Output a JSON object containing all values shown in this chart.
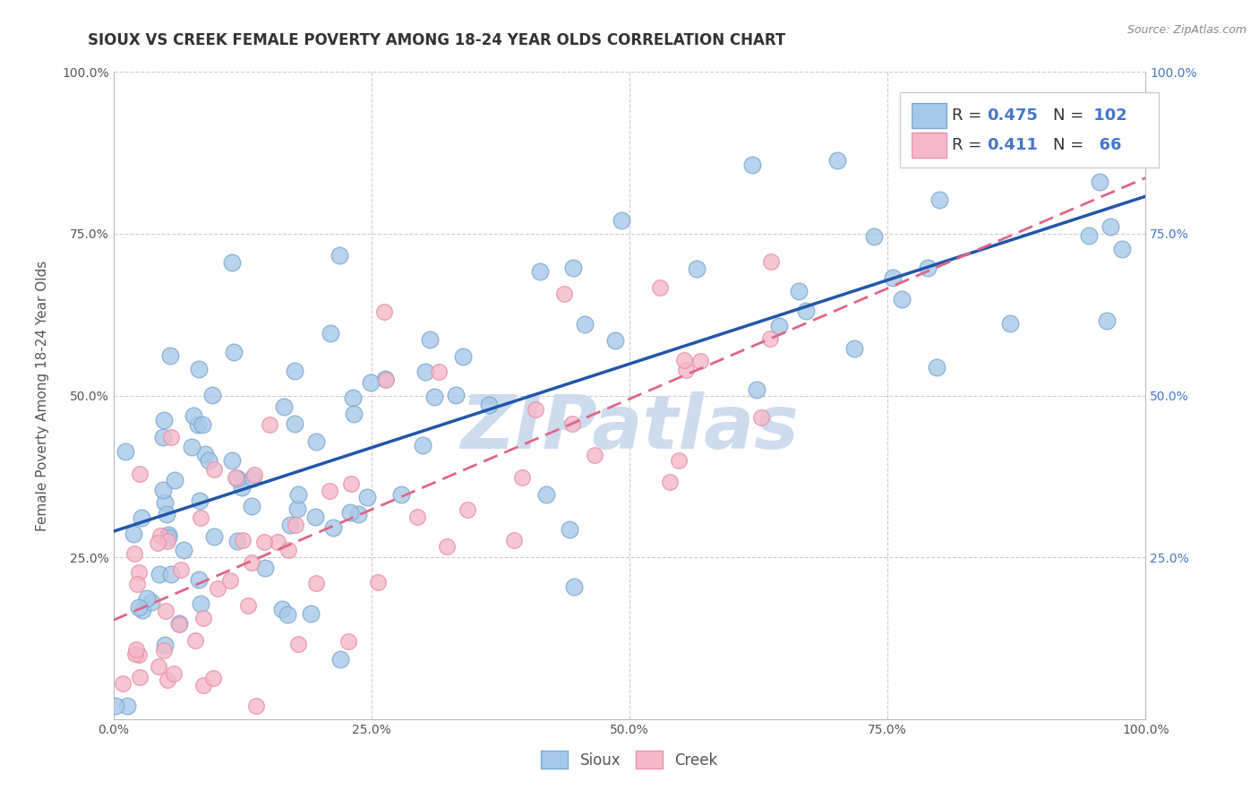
{
  "title": "SIOUX VS CREEK FEMALE POVERTY AMONG 18-24 YEAR OLDS CORRELATION CHART",
  "source": "Source: ZipAtlas.com",
  "ylabel": "Female Poverty Among 18-24 Year Olds",
  "xlim": [
    0.0,
    1.0
  ],
  "ylim": [
    0.0,
    1.0
  ],
  "xticks": [
    0.0,
    0.25,
    0.5,
    0.75,
    1.0
  ],
  "xticklabels": [
    "0.0%",
    "25.0%",
    "50.0%",
    "75.0%",
    "100.0%"
  ],
  "yticks": [
    0.0,
    0.25,
    0.5,
    0.75,
    1.0
  ],
  "yticklabels": [
    "",
    "25.0%",
    "50.0%",
    "75.0%",
    "100.0%"
  ],
  "right_yticklabels": [
    "25.0%",
    "50.0%",
    "75.0%",
    "100.0%"
  ],
  "sioux_color": "#a8c8e8",
  "sioux_edge": "#7aaad0",
  "creek_color": "#f4b8ca",
  "creek_edge": "#e890a8",
  "sioux_line_color": "#2255aa",
  "creek_line_color": "#dd6688",
  "sioux_R": 0.475,
  "sioux_N": 102,
  "creek_R": 0.411,
  "creek_N": 66,
  "legend_text_color": "#4477cc",
  "watermark": "ZIPatlas",
  "watermark_color": "#c8d8ee",
  "background_color": "#ffffff",
  "grid_color": "#cccccc",
  "title_fontsize": 12,
  "axis_label_fontsize": 11,
  "tick_fontsize": 10,
  "legend_fontsize": 13
}
